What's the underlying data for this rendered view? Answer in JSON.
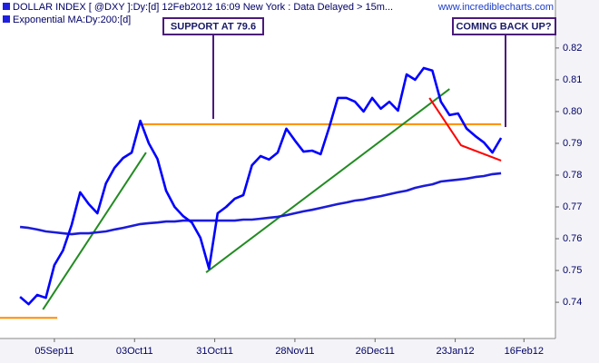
{
  "chart_data": {
    "type": "line",
    "title": "DOLLAR INDEX [ @DXY ]:Dy:[d]  12Feb2012 16:09 New York  : Data Delayed > 15m...",
    "source": "www.incrediblecharts.com",
    "x": [
      "2011-08-24",
      "2011-08-27",
      "2011-08-30",
      "2011-09-02",
      "2011-09-05",
      "2011-09-08",
      "2011-09-11",
      "2011-09-14",
      "2011-09-17",
      "2011-09-20",
      "2011-09-23",
      "2011-09-26",
      "2011-09-29",
      "2011-10-02",
      "2011-10-05",
      "2011-10-08",
      "2011-10-11",
      "2011-10-14",
      "2011-10-17",
      "2011-10-20",
      "2011-10-23",
      "2011-10-26",
      "2011-10-29",
      "2011-11-01",
      "2011-11-04",
      "2011-11-07",
      "2011-11-10",
      "2011-11-13",
      "2011-11-16",
      "2011-11-19",
      "2011-11-22",
      "2011-11-25",
      "2011-11-28",
      "2011-12-01",
      "2011-12-04",
      "2011-12-07",
      "2011-12-10",
      "2011-12-13",
      "2011-12-16",
      "2011-12-19",
      "2011-12-22",
      "2011-12-25",
      "2011-12-28",
      "2011-12-31",
      "2012-01-03",
      "2012-01-06",
      "2012-01-09",
      "2012-01-12",
      "2012-01-15",
      "2012-01-18",
      "2012-01-21",
      "2012-01-24",
      "2012-01-27",
      "2012-01-30",
      "2012-02-02",
      "2012-02-05",
      "2012-02-08"
    ],
    "series": [
      {
        "name": "DOLLAR INDEX [ @DXY ]:Dy:[d]",
        "color": "#0000ff",
        "values": [
          0.7417,
          0.7394,
          0.7423,
          0.7414,
          0.7517,
          0.7563,
          0.7643,
          0.7746,
          0.7709,
          0.768,
          0.7774,
          0.7823,
          0.7854,
          0.7871,
          0.7971,
          0.79,
          0.7851,
          0.7751,
          0.77,
          0.7671,
          0.7651,
          0.7603,
          0.7506,
          0.768,
          0.77,
          0.7726,
          0.7737,
          0.7831,
          0.786,
          0.7849,
          0.7871,
          0.7946,
          0.7909,
          0.7874,
          0.7877,
          0.7866,
          0.7951,
          0.8043,
          0.8043,
          0.8031,
          0.8,
          0.8043,
          0.8009,
          0.8031,
          0.8003,
          0.8117,
          0.81,
          0.8137,
          0.8129,
          0.8031,
          0.7989,
          0.7994,
          0.7946,
          0.7923,
          0.7903,
          0.7871,
          0.7917
        ]
      },
      {
        "name": "Exponential MA:Dy:200:[d]",
        "color": "#1c1cd8",
        "values": [
          0.7637,
          0.7634,
          0.7629,
          0.7623,
          0.762,
          0.7617,
          0.7614,
          0.7617,
          0.7617,
          0.762,
          0.7623,
          0.7629,
          0.7634,
          0.764,
          0.7646,
          0.7649,
          0.7651,
          0.7654,
          0.7654,
          0.7657,
          0.7657,
          0.7657,
          0.7657,
          0.7657,
          0.7657,
          0.7657,
          0.766,
          0.766,
          0.7663,
          0.7666,
          0.7669,
          0.7674,
          0.768,
          0.7686,
          0.7691,
          0.7697,
          0.7703,
          0.7709,
          0.7714,
          0.772,
          0.7723,
          0.7729,
          0.7734,
          0.774,
          0.7746,
          0.7751,
          0.776,
          0.7766,
          0.7771,
          0.778,
          0.7783,
          0.7786,
          0.7789,
          0.7794,
          0.7797,
          0.7803,
          0.7806
        ]
      }
    ],
    "trend_lines": [
      {
        "color": "#ff8c00",
        "x": [
          "2011-08-17",
          "2011-09-06"
        ],
        "values": [
          0.7351,
          0.7351
        ]
      },
      {
        "color": "#ff8c00",
        "x": [
          "2011-10-05",
          "2012-02-08"
        ],
        "values": [
          0.796,
          0.796
        ]
      },
      {
        "color": "#228b22",
        "x": [
          "2011-09-01",
          "2011-10-07"
        ],
        "values": [
          0.7377,
          0.7871
        ]
      },
      {
        "color": "#228b22",
        "x": [
          "2011-10-28",
          "2012-01-21"
        ],
        "values": [
          0.7494,
          0.8071
        ]
      },
      {
        "color": "#ff0000",
        "x": [
          "2012-01-14",
          "2012-01-25",
          "2012-02-08"
        ],
        "values": [
          0.8043,
          0.7894,
          0.7846
        ]
      }
    ],
    "annotations": [
      {
        "label": "SUPPORT AT 79.6"
      },
      {
        "label": "COMING BACK UP?"
      }
    ],
    "xlim": [
      "2011-08-17",
      "2012-02-27"
    ],
    "xticks": [
      {
        "value": "2011-09-05",
        "label": "05Sep11"
      },
      {
        "value": "2011-10-03",
        "label": "03Oct11"
      },
      {
        "value": "2011-10-31",
        "label": "31Oct11"
      },
      {
        "value": "2011-11-28",
        "label": "28Nov11"
      },
      {
        "value": "2011-12-26",
        "label": "26Dec11"
      },
      {
        "value": "2012-01-23",
        "label": "23Jan12"
      },
      {
        "value": "2012-02-16",
        "label": "16Feb12"
      }
    ],
    "ylim": [
      0.7286,
      0.8351
    ],
    "yticks": [
      0.74,
      0.75,
      0.76,
      0.77,
      0.78,
      0.79,
      {
        "value": 0.8,
        "label": "0.80"
      },
      0.81,
      0.82
    ]
  }
}
